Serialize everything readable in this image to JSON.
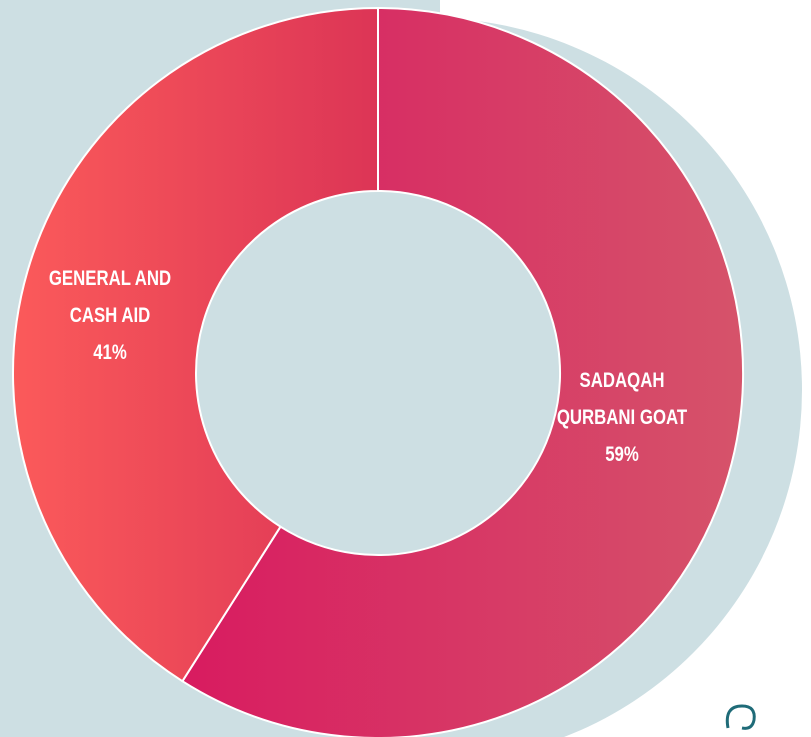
{
  "chart_data": {
    "type": "donut",
    "categories": [
      "SADAQAH QURBANI GOAT",
      "GENERAL AND CASH AID"
    ],
    "values": [
      59,
      41
    ],
    "value_labels": [
      "59%",
      "41%"
    ],
    "colors": [
      {
        "from": "#d81b60",
        "to": "#d6536a"
      },
      {
        "from": "#fb5a5a",
        "to": "#dc3556"
      }
    ]
  }
}
